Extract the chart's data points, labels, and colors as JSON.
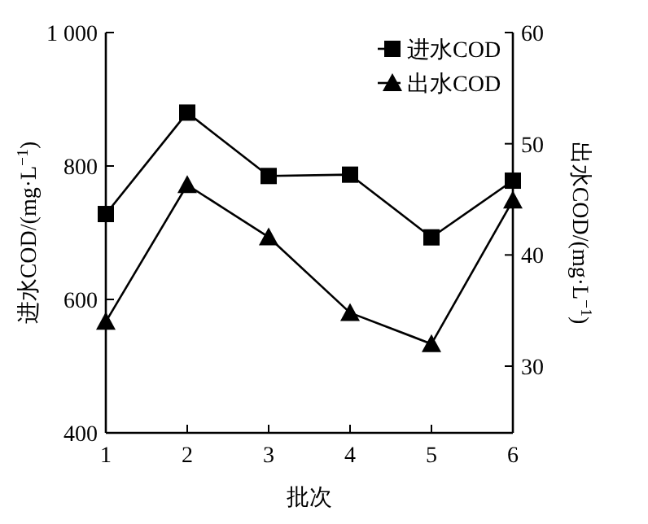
{
  "chart_data": {
    "type": "line",
    "xlabel": "批次",
    "ylabel": "进水COD/(mg·L$^{−1}$)",
    "y2label": "出水COD/(mg·L$^{−1}$)",
    "x": [
      1,
      2,
      3,
      4,
      5,
      6
    ],
    "xlim": [
      1,
      6
    ],
    "xticks": [
      1,
      2,
      3,
      4,
      5,
      6
    ],
    "ylim": [
      400,
      1000
    ],
    "yticks": [
      400,
      600,
      800,
      {
        "value": 1000,
        "label": "1 000"
      }
    ],
    "y2lim": [
      24,
      60
    ],
    "y2ticks": [
      30,
      40,
      50,
      60
    ],
    "legend": "top right",
    "line_style": "solid",
    "series": [
      {
        "name": "进水COD",
        "color": "#000000",
        "marker": "square",
        "values": [
          728,
          880,
          785,
          787,
          693,
          778
        ]
      },
      {
        "name": "出水COD",
        "color": "#000000",
        "marker": "triangle",
        "axis": "y2",
        "values": [
          34.0,
          46.3,
          41.6,
          34.8,
          32.0,
          44.9
        ]
      }
    ]
  }
}
